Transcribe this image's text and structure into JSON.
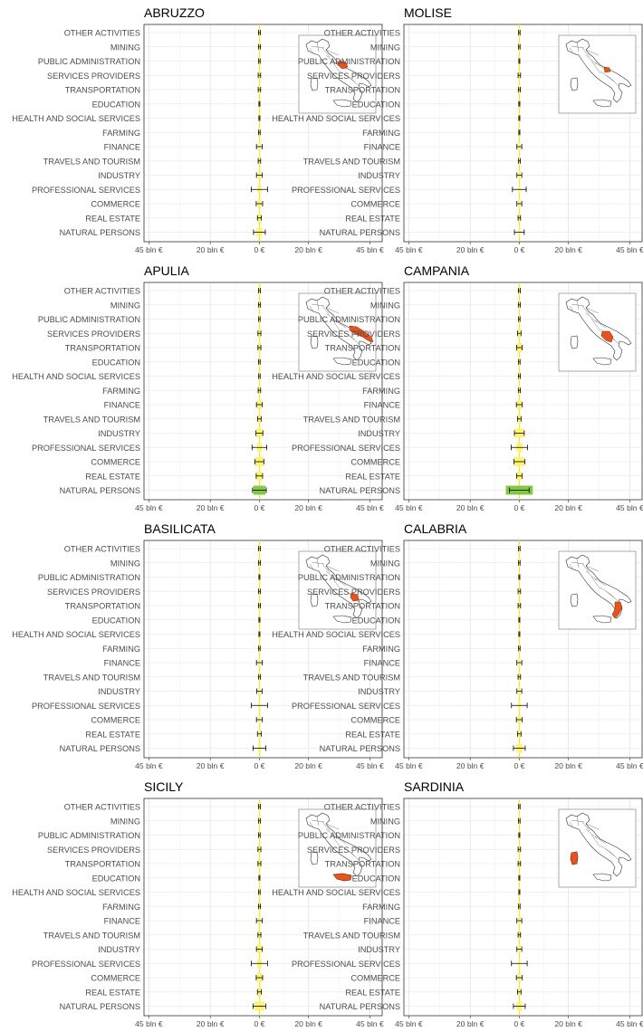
{
  "chart_data": {
    "type": "errorbar",
    "x_axis_ticks": [
      "45 bln €",
      "20 bln €",
      "0 €",
      "20 bln €",
      "45 bln €"
    ],
    "categories": [
      "OTHER ACTIVITIES",
      "MINING",
      "PUBLIC ADMINISTRATION",
      "SERVICES PROVIDERS",
      "TRANSPORTATION",
      "EDUCATION",
      "HEALTH AND SOCIAL SERVICES",
      "FARMING",
      "FINANCE",
      "TRAVELS AND TOURISM",
      "INDUSTRY",
      "PROFESSIONAL SERVICES",
      "COMMERCE",
      "REAL ESTATE",
      "NATURAL PERSONS"
    ],
    "xlim": [
      -47,
      50
    ],
    "highlight_color": "#e8521c",
    "bar_color_scale": [
      "#fff36b",
      "#7cc43a"
    ],
    "panels": [
      {
        "title": "ABRUZZO",
        "series": [
          {
            "category": "OTHER ACTIVITIES",
            "value": 0.4,
            "err": 0.4
          },
          {
            "category": "MINING",
            "value": 0.4,
            "err": 0.4
          },
          {
            "category": "PUBLIC ADMINISTRATION",
            "value": 0.1,
            "err": 0.3
          },
          {
            "category": "SERVICES PROVIDERS",
            "value": 0.3,
            "err": 0.5
          },
          {
            "category": "TRANSPORTATION",
            "value": 0.3,
            "err": 0.5
          },
          {
            "category": "EDUCATION",
            "value": 0.1,
            "err": 0.2
          },
          {
            "category": "HEALTH AND SOCIAL SERVICES",
            "value": 0.1,
            "err": 0.2
          },
          {
            "category": "FARMING",
            "value": 0.2,
            "err": 0.3
          },
          {
            "category": "FINANCE",
            "value": 0.4,
            "err": 1.2
          },
          {
            "category": "TRAVELS AND TOURISM",
            "value": 0.2,
            "err": 0.5
          },
          {
            "category": "INDUSTRY",
            "value": 0.6,
            "err": 1.2
          },
          {
            "category": "PROFESSIONAL SERVICES",
            "value": 0.8,
            "err": 3.3
          },
          {
            "category": "COMMERCE",
            "value": 0.7,
            "err": 1.3
          },
          {
            "category": "REAL ESTATE",
            "value": 0.6,
            "err": 0.8
          },
          {
            "category": "NATURAL PERSONS",
            "value": 1.2,
            "err": 2.4
          }
        ]
      },
      {
        "title": "MOLISE",
        "series": [
          {
            "category": "OTHER ACTIVITIES",
            "value": 0.2,
            "err": 0.3
          },
          {
            "category": "MINING",
            "value": 0.2,
            "err": 0.3
          },
          {
            "category": "PUBLIC ADMINISTRATION",
            "value": 0.1,
            "err": 0.2
          },
          {
            "category": "SERVICES PROVIDERS",
            "value": 0.2,
            "err": 0.5
          },
          {
            "category": "TRANSPORTATION",
            "value": 0.2,
            "err": 0.4
          },
          {
            "category": "EDUCATION",
            "value": 0.1,
            "err": 0.2
          },
          {
            "category": "HEALTH AND SOCIAL SERVICES",
            "value": 0.1,
            "err": 0.2
          },
          {
            "category": "FARMING",
            "value": 0.1,
            "err": 0.2
          },
          {
            "category": "FINANCE",
            "value": 0.2,
            "err": 1.0
          },
          {
            "category": "TRAVELS AND TOURISM",
            "value": 0.1,
            "err": 0.4
          },
          {
            "category": "INDUSTRY",
            "value": 0.2,
            "err": 1.0
          },
          {
            "category": "PROFESSIONAL SERVICES",
            "value": 0.3,
            "err": 2.8
          },
          {
            "category": "COMMERCE",
            "value": 0.2,
            "err": 1.0
          },
          {
            "category": "REAL ESTATE",
            "value": 0.2,
            "err": 0.5
          },
          {
            "category": "NATURAL PERSONS",
            "value": 0.4,
            "err": 2.0
          }
        ]
      },
      {
        "title": "APULIA",
        "series": [
          {
            "category": "OTHER ACTIVITIES",
            "value": 0.4,
            "err": 0.4
          },
          {
            "category": "MINING",
            "value": 0.4,
            "err": 0.4
          },
          {
            "category": "PUBLIC ADMINISTRATION",
            "value": 0.3,
            "err": 0.3
          },
          {
            "category": "SERVICES PROVIDERS",
            "value": 0.6,
            "err": 0.6
          },
          {
            "category": "TRANSPORTATION",
            "value": 0.6,
            "err": 0.6
          },
          {
            "category": "EDUCATION",
            "value": 0.1,
            "err": 0.3
          },
          {
            "category": "HEALTH AND SOCIAL SERVICES",
            "value": 0.2,
            "err": 0.3
          },
          {
            "category": "FARMING",
            "value": 0.5,
            "err": 0.5
          },
          {
            "category": "FINANCE",
            "value": 0.8,
            "err": 1.2
          },
          {
            "category": "TRAVELS AND TOURISM",
            "value": 0.7,
            "err": 0.7
          },
          {
            "category": "INDUSTRY",
            "value": 1.4,
            "err": 1.4
          },
          {
            "category": "PROFESSIONAL SERVICES",
            "value": 1.0,
            "err": 3.0
          },
          {
            "category": "COMMERCE",
            "value": 1.8,
            "err": 1.8
          },
          {
            "category": "REAL ESTATE",
            "value": 1.3,
            "err": 1.3
          },
          {
            "category": "NATURAL PERSONS",
            "value": 2.5,
            "err": 2.8
          }
        ]
      },
      {
        "title": "CAMPANIA",
        "series": [
          {
            "category": "OTHER ACTIVITIES",
            "value": 0.4,
            "err": 0.4
          },
          {
            "category": "MINING",
            "value": 0.3,
            "err": 0.4
          },
          {
            "category": "PUBLIC ADMINISTRATION",
            "value": 0.3,
            "err": 0.3
          },
          {
            "category": "SERVICES PROVIDERS",
            "value": 0.7,
            "err": 0.7
          },
          {
            "category": "TRANSPORTATION",
            "value": 1.1,
            "err": 1.1
          },
          {
            "category": "EDUCATION",
            "value": 0.2,
            "err": 0.3
          },
          {
            "category": "HEALTH AND SOCIAL SERVICES",
            "value": 0.3,
            "err": 0.4
          },
          {
            "category": "FARMING",
            "value": 0.4,
            "err": 0.4
          },
          {
            "category": "FINANCE",
            "value": 0.9,
            "err": 1.2
          },
          {
            "category": "TRAVELS AND TOURISM",
            "value": 0.7,
            "err": 0.7
          },
          {
            "category": "INDUSTRY",
            "value": 2.0,
            "err": 2.0
          },
          {
            "category": "PROFESSIONAL SERVICES",
            "value": 1.3,
            "err": 3.3
          },
          {
            "category": "COMMERCE",
            "value": 2.2,
            "err": 2.2
          },
          {
            "category": "REAL ESTATE",
            "value": 1.1,
            "err": 1.1
          },
          {
            "category": "NATURAL PERSONS",
            "value": 5.5,
            "err": 4.0
          }
        ]
      },
      {
        "title": "BASILICATA",
        "series": [
          {
            "category": "OTHER ACTIVITIES",
            "value": 0.2,
            "err": 0.4
          },
          {
            "category": "MINING",
            "value": 0.2,
            "err": 0.4
          },
          {
            "category": "PUBLIC ADMINISTRATION",
            "value": 0.1,
            "err": 0.2
          },
          {
            "category": "SERVICES PROVIDERS",
            "value": 0.2,
            "err": 0.4
          },
          {
            "category": "TRANSPORTATION",
            "value": 0.2,
            "err": 0.4
          },
          {
            "category": "EDUCATION",
            "value": 0.1,
            "err": 0.2
          },
          {
            "category": "HEALTH AND SOCIAL SERVICES",
            "value": 0.1,
            "err": 0.2
          },
          {
            "category": "FARMING",
            "value": 0.1,
            "err": 0.3
          },
          {
            "category": "FINANCE",
            "value": 0.2,
            "err": 1.2
          },
          {
            "category": "TRAVELS AND TOURISM",
            "value": 0.1,
            "err": 0.4
          },
          {
            "category": "INDUSTRY",
            "value": 0.2,
            "err": 1.1
          },
          {
            "category": "PROFESSIONAL SERVICES",
            "value": 0.2,
            "err": 3.3
          },
          {
            "category": "COMMERCE",
            "value": 0.2,
            "err": 1.2
          },
          {
            "category": "REAL ESTATE",
            "value": 0.2,
            "err": 0.8
          },
          {
            "category": "NATURAL PERSONS",
            "value": 0.6,
            "err": 2.6
          }
        ]
      },
      {
        "title": "CALABRIA",
        "series": [
          {
            "category": "OTHER ACTIVITIES",
            "value": 0.2,
            "err": 0.3
          },
          {
            "category": "MINING",
            "value": 0.2,
            "err": 0.3
          },
          {
            "category": "PUBLIC ADMINISTRATION",
            "value": 0.1,
            "err": 0.2
          },
          {
            "category": "SERVICES PROVIDERS",
            "value": 0.3,
            "err": 0.5
          },
          {
            "category": "TRANSPORTATION",
            "value": 0.3,
            "err": 0.5
          },
          {
            "category": "EDUCATION",
            "value": 0.1,
            "err": 0.2
          },
          {
            "category": "HEALTH AND SOCIAL SERVICES",
            "value": 0.1,
            "err": 0.2
          },
          {
            "category": "FARMING",
            "value": 0.3,
            "err": 0.3
          },
          {
            "category": "FINANCE",
            "value": 0.3,
            "err": 1.0
          },
          {
            "category": "TRAVELS AND TOURISM",
            "value": 0.4,
            "err": 0.5
          },
          {
            "category": "INDUSTRY",
            "value": 0.5,
            "err": 1.0
          },
          {
            "category": "PROFESSIONAL SERVICES",
            "value": 0.5,
            "err": 3.2
          },
          {
            "category": "COMMERCE",
            "value": 0.7,
            "err": 1.2
          },
          {
            "category": "REAL ESTATE",
            "value": 0.5,
            "err": 0.7
          },
          {
            "category": "NATURAL PERSONS",
            "value": 1.3,
            "err": 2.4
          }
        ]
      },
      {
        "title": "SICILY",
        "series": [
          {
            "category": "OTHER ACTIVITIES",
            "value": 0.3,
            "err": 0.4
          },
          {
            "category": "MINING",
            "value": 0.3,
            "err": 0.4
          },
          {
            "category": "PUBLIC ADMINISTRATION",
            "value": 0.2,
            "err": 0.3
          },
          {
            "category": "SERVICES PROVIDERS",
            "value": 0.5,
            "err": 0.6
          },
          {
            "category": "TRANSPORTATION",
            "value": 0.6,
            "err": 0.6
          },
          {
            "category": "EDUCATION",
            "value": 0.1,
            "err": 0.2
          },
          {
            "category": "HEALTH AND SOCIAL SERVICES",
            "value": 0.2,
            "err": 0.3
          },
          {
            "category": "FARMING",
            "value": 0.4,
            "err": 0.4
          },
          {
            "category": "FINANCE",
            "value": 0.5,
            "err": 1.2
          },
          {
            "category": "TRAVELS AND TOURISM",
            "value": 0.6,
            "err": 0.6
          },
          {
            "category": "INDUSTRY",
            "value": 0.9,
            "err": 1.2
          },
          {
            "category": "PROFESSIONAL SERVICES",
            "value": 0.9,
            "err": 3.3
          },
          {
            "category": "COMMERCE",
            "value": 1.1,
            "err": 1.3
          },
          {
            "category": "REAL ESTATE",
            "value": 0.8,
            "err": 0.8
          },
          {
            "category": "NATURAL PERSONS",
            "value": 2.0,
            "err": 2.6
          }
        ]
      },
      {
        "title": "SARDINIA",
        "series": [
          {
            "category": "OTHER ACTIVITIES",
            "value": 0.2,
            "err": 0.3
          },
          {
            "category": "MINING",
            "value": 0.2,
            "err": 0.3
          },
          {
            "category": "PUBLIC ADMINISTRATION",
            "value": 0.1,
            "err": 0.2
          },
          {
            "category": "SERVICES PROVIDERS",
            "value": 0.3,
            "err": 0.5
          },
          {
            "category": "TRANSPORTATION",
            "value": 0.3,
            "err": 0.5
          },
          {
            "category": "EDUCATION",
            "value": 0.1,
            "err": 0.2
          },
          {
            "category": "HEALTH AND SOCIAL SERVICES",
            "value": 0.1,
            "err": 0.2
          },
          {
            "category": "FARMING",
            "value": 0.3,
            "err": 0.3
          },
          {
            "category": "FINANCE",
            "value": 0.3,
            "err": 1.0
          },
          {
            "category": "TRAVELS AND TOURISM",
            "value": 0.4,
            "err": 0.5
          },
          {
            "category": "INDUSTRY",
            "value": 0.5,
            "err": 1.0
          },
          {
            "category": "PROFESSIONAL SERVICES",
            "value": 0.4,
            "err": 3.2
          },
          {
            "category": "COMMERCE",
            "value": 0.6,
            "err": 1.2
          },
          {
            "category": "REAL ESTATE",
            "value": 0.5,
            "err": 0.7
          },
          {
            "category": "NATURAL PERSONS",
            "value": 1.2,
            "err": 2.4
          }
        ]
      }
    ]
  }
}
